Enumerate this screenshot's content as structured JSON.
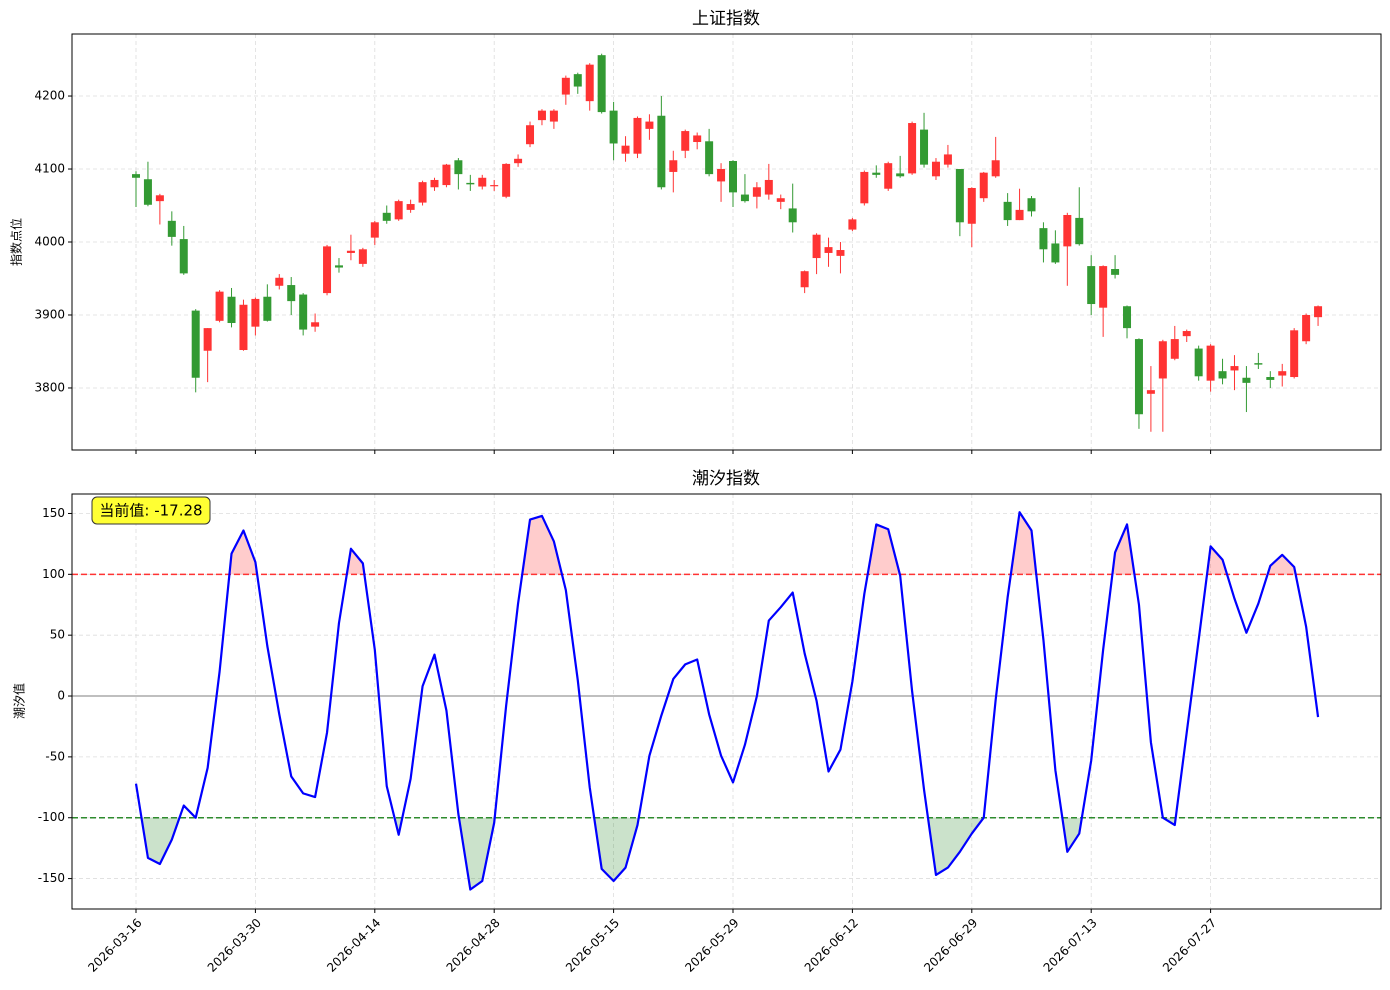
{
  "chart_data": [
    {
      "type": "candlestick",
      "title": "上证指数",
      "y_label": "指数点位",
      "up_color": "#ff3333",
      "down_color": "#339a33",
      "grid": true,
      "ylim": [
        3715,
        4285
      ],
      "yticks": [
        3800,
        3900,
        4000,
        4100,
        4200
      ],
      "open": [
        4093,
        4086,
        4056,
        4029,
        4004,
        3906,
        3851,
        3892,
        3925,
        3852,
        3884,
        3925,
        3940,
        3941,
        3928,
        3884,
        3930,
        3968,
        3985,
        3970,
        4006,
        4040,
        4031,
        4044,
        4054,
        4075,
        4078,
        4112,
        4081,
        4076,
        4077,
        4062,
        4108,
        4134,
        4167,
        4165,
        4202,
        4230,
        4193,
        4256,
        4180,
        4121,
        4121,
        4155,
        4173,
        4096,
        4125,
        4137,
        4138,
        4083,
        4111,
        4065,
        4062,
        4065,
        4055,
        4046,
        3938,
        3978,
        3985,
        3981,
        4017,
        4053,
        4095,
        4073,
        4094,
        4094,
        4154,
        4090,
        4106,
        4100,
        4025,
        4060,
        4090,
        4055,
        4030,
        4060,
        4019,
        3998,
        3994,
        4033,
        3967,
        3910,
        3963,
        3912,
        3867,
        3792,
        3813,
        3840,
        3871,
        3854,
        3810,
        3823,
        3824,
        3814,
        3834,
        3815,
        3817,
        3815,
        3864,
        3897
      ],
      "high": [
        4097,
        4110,
        4066,
        4042,
        4022,
        3908,
        3882,
        3934,
        3937,
        3921,
        3924,
        3942,
        3956,
        3952,
        3930,
        3902,
        3996,
        3978,
        4010,
        3992,
        4029,
        4050,
        4058,
        4058,
        4084,
        4088,
        4107,
        4115,
        4092,
        4092,
        4085,
        4108,
        4120,
        4165,
        4182,
        4182,
        4228,
        4232,
        4245,
        4258,
        4192,
        4145,
        4172,
        4175,
        4200,
        4125,
        4154,
        4150,
        4155,
        4108,
        4112,
        4093,
        4082,
        4107,
        4065,
        4080,
        3961,
        4012,
        4006,
        4000,
        4033,
        4098,
        4105,
        4110,
        4118,
        4165,
        4177,
        4115,
        4133,
        4100,
        4075,
        4096,
        4144,
        4067,
        4073,
        4063,
        4027,
        4016,
        4040,
        4075,
        3982,
        3968,
        3982,
        3913,
        3868,
        3830,
        3866,
        3885,
        3880,
        3858,
        3860,
        3840,
        3845,
        3830,
        3848,
        3823,
        3833,
        3882,
        3902,
        3913
      ],
      "low": [
        4048,
        4049,
        4024,
        3995,
        3955,
        3794,
        3808,
        3890,
        3883,
        3851,
        3872,
        3891,
        3935,
        3900,
        3872,
        3877,
        3927,
        3958,
        3975,
        3966,
        3996,
        4025,
        4029,
        4040,
        4050,
        4070,
        4075,
        4072,
        4070,
        4072,
        4070,
        4060,
        4103,
        4130,
        4160,
        4155,
        4188,
        4203,
        4180,
        4176,
        4112,
        4110,
        4115,
        4140,
        4072,
        4068,
        4115,
        4127,
        4090,
        4055,
        4048,
        4054,
        4046,
        4058,
        4045,
        4013,
        3930,
        3956,
        3966,
        3957,
        4015,
        4050,
        4088,
        4070,
        4088,
        4092,
        4102,
        4085,
        4102,
        4008,
        3993,
        4055,
        4088,
        4022,
        4030,
        4035,
        3972,
        3970,
        3940,
        3995,
        3900,
        3870,
        3950,
        3868,
        3744,
        3740,
        3740,
        3838,
        3863,
        3810,
        3795,
        3805,
        3797,
        3767,
        3826,
        3800,
        3802,
        3813,
        3860,
        3885
      ],
      "close": [
        4088,
        4051,
        4064,
        4007,
        3957,
        3814,
        3882,
        3932,
        3889,
        3914,
        3922,
        3892,
        3951,
        3919,
        3880,
        3890,
        3994,
        3965,
        3988,
        3990,
        4027,
        4029,
        4056,
        4052,
        4082,
        4085,
        4106,
        4093,
        4079,
        4088,
        4078,
        4107,
        4114,
        4160,
        4180,
        4180,
        4225,
        4213,
        4243,
        4178,
        4135,
        4132,
        4170,
        4165,
        4075,
        4112,
        4152,
        4146,
        4093,
        4100,
        4068,
        4056,
        4075,
        4085,
        4060,
        4027,
        3960,
        4010,
        3993,
        3989,
        4031,
        4096,
        4092,
        4108,
        4090,
        4163,
        4106,
        4110,
        4120,
        4027,
        4074,
        4095,
        4112,
        4030,
        4044,
        4042,
        3990,
        3972,
        4037,
        3997,
        3915,
        3967,
        3955,
        3882,
        3764,
        3797,
        3864,
        3867,
        3878,
        3816,
        3858,
        3813,
        3830,
        3807,
        3832,
        3811,
        3823,
        3879,
        3900,
        3912
      ]
    },
    {
      "type": "line",
      "title": "潮汐指数",
      "y_label": "潮汐值",
      "color": "#0000ff",
      "grid": true,
      "annotation": "当前值: -17.28",
      "upper_threshold": 100,
      "upper_color": "#ff3333",
      "lower_threshold": -100,
      "lower_color": "#2e8b2e",
      "baseline": 0,
      "ylim": [
        -175,
        166
      ],
      "yticks": [
        -150,
        -100,
        -50,
        0,
        50,
        100,
        150
      ],
      "categories": [
        "2026-03-16",
        null,
        null,
        null,
        null,
        null,
        null,
        null,
        null,
        null,
        "2026-03-30",
        null,
        null,
        null,
        null,
        null,
        null,
        null,
        null,
        null,
        "2026-04-14",
        null,
        null,
        null,
        null,
        null,
        null,
        null,
        null,
        null,
        "2026-04-28",
        null,
        null,
        null,
        null,
        null,
        null,
        null,
        null,
        null,
        "2026-05-15",
        null,
        null,
        null,
        null,
        null,
        null,
        null,
        null,
        null,
        "2026-05-29",
        null,
        null,
        null,
        null,
        null,
        null,
        null,
        null,
        null,
        "2026-06-12",
        null,
        null,
        null,
        null,
        null,
        null,
        null,
        null,
        null,
        "2026-06-29",
        null,
        null,
        null,
        null,
        null,
        null,
        null,
        null,
        null,
        "2026-07-13",
        null,
        null,
        null,
        null,
        null,
        null,
        null,
        null,
        null,
        "2026-07-27",
        null,
        null,
        null,
        null,
        null,
        null,
        null,
        null,
        null
      ],
      "values": [
        -72,
        -133,
        -138,
        -118,
        -90,
        -100,
        -59,
        20,
        117,
        136,
        110,
        41,
        -15,
        -66,
        -80,
        -83,
        -30,
        60,
        121,
        109,
        38,
        -74,
        -114,
        -68,
        8,
        34,
        -12,
        -97,
        -159,
        -152,
        -104,
        -8,
        76,
        145,
        148,
        127,
        87,
        13,
        -75,
        -142,
        -152,
        -141,
        -106,
        -49,
        -16,
        14,
        26,
        30,
        -15,
        -49,
        -71,
        -40,
        0,
        62,
        73,
        85,
        35,
        -4,
        -62,
        -44,
        12,
        84,
        141,
        137,
        99,
        4,
        -77,
        -147,
        -141,
        -128,
        -113,
        -100,
        -3,
        81,
        151,
        136,
        46,
        -61,
        -128,
        -113,
        -53,
        38,
        118,
        141,
        75,
        -38,
        -100,
        -106,
        -30,
        46,
        123,
        112,
        80,
        52,
        76,
        107,
        116,
        106,
        57,
        -17.28
      ]
    }
  ]
}
